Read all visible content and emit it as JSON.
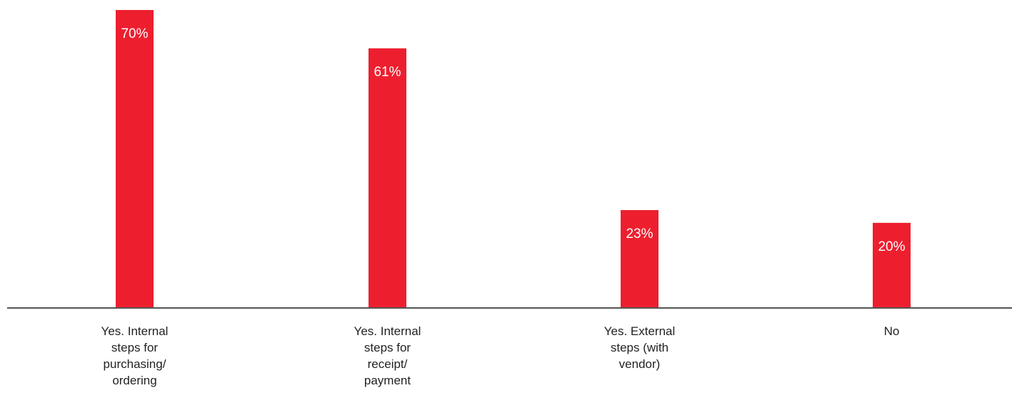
{
  "chart_data": {
    "type": "bar",
    "categories": [
      "Yes. Internal steps for purchasing/ ordering",
      "Yes. Internal steps for receipt/ payment",
      "Yes. External steps (with vendor)",
      "No"
    ],
    "category_lines": [
      [
        "Yes. Internal",
        "steps for",
        "purchasing/",
        "ordering"
      ],
      [
        "Yes. Internal",
        "steps for",
        "receipt/",
        "payment"
      ],
      [
        "Yes. External",
        "steps (with",
        "vendor)"
      ],
      [
        "No"
      ]
    ],
    "values": [
      70,
      61,
      23,
      20
    ],
    "value_labels": [
      "70%",
      "61%",
      "23%",
      "20%"
    ],
    "unit": "%",
    "ylim": [
      0,
      70
    ],
    "grid": false,
    "colors": {
      "bar": "#ed1f2f",
      "axis": "#555555",
      "bar_label": "#ffffff",
      "category_label": "#222222"
    }
  }
}
